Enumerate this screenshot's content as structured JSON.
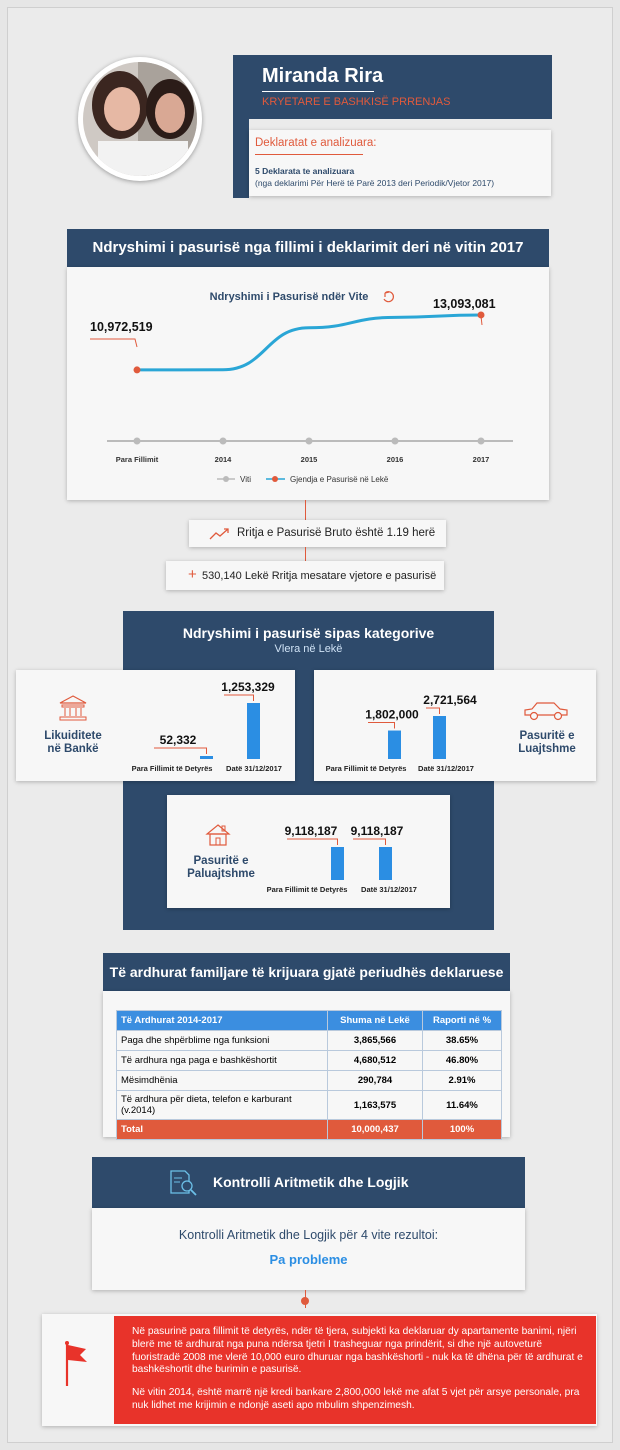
{
  "profile": {
    "name": "Miranda Rira",
    "role": "KRYETARE E BASHKISË PRRENJAS",
    "declarations_heading": "Deklaratat e analizuara:",
    "declarations_count": "5 Deklarata te analizuara",
    "declarations_range": "(nga deklarimi Për Herë të Parë 2013 deri  Periodik/Vjetor 2017)"
  },
  "wealth_change": {
    "title": "Ndryshimi i pasurisë nga fillimi i deklarimit deri në vitin 2017",
    "chart_title": "Ndryshimi i Pasurisë ndër Vite",
    "start_label": "10,972,519",
    "end_label": "13,093,081",
    "legend_year": "Viti",
    "legend_series": "Gjendja e Pasurisë në Lekë"
  },
  "chart_data": [
    {
      "type": "line",
      "title": "Ndryshimi i Pasurisë ndër Vite",
      "categories": [
        "Para Fillimit",
        "2014",
        "2015",
        "2016",
        "2017"
      ],
      "series": [
        {
          "name": "Gjendja e Pasurisë në Lekë",
          "values": [
            10972519,
            10980000,
            12600000,
            13000000,
            13093081
          ]
        }
      ]
    },
    {
      "type": "bar",
      "title": "Likuiditete në Bankë",
      "categories": [
        "Para Fillimit të Detyrës",
        "Datë 31/12/2017"
      ],
      "values": [
        52332,
        1253329
      ]
    },
    {
      "type": "bar",
      "title": "Pasuritë e Luajtshme",
      "categories": [
        "Para Fillimit të Detyrës",
        "Datë 31/12/2017"
      ],
      "values": [
        1802000,
        2721564
      ]
    },
    {
      "type": "bar",
      "title": "Pasuritë e Paluajtshme",
      "categories": [
        "Para Fillimit të Detyrës",
        "Datë 31/12/2017"
      ],
      "values": [
        9118187,
        9118187
      ]
    }
  ],
  "summary": {
    "growth": "Rritja e Pasurisë Bruto është 1.19 herë",
    "avg_value": "530,140",
    "avg_text": "Lekë Rritja mesatare vjetore e pasurisë"
  },
  "categories": {
    "title": "Ndryshimi i pasurisë sipas kategorive",
    "subtitle": "Vlera në Lekë",
    "bank": {
      "label1": "Likuiditete",
      "label2": "në Bankë",
      "v1": "52,332",
      "v2": "1,253,329"
    },
    "movable": {
      "label1": "Pasuritë e",
      "label2": "Luajtshme",
      "v1": "1,802,000",
      "v2": "2,721,564"
    },
    "immovable": {
      "label1": "Pasuritë e",
      "label2": "Paluajtshme",
      "v1": "9,118,187",
      "v2": "9,118,187"
    },
    "x1": "Para Fillimit të Detyrës",
    "x2": "Datë 31/12/2017"
  },
  "income": {
    "title": "Të ardhurat familjare të krijuara gjatë periudhës deklaruese",
    "headers": [
      "Të Ardhurat 2014-2017",
      "Shuma në Lekë",
      "Raporti në %"
    ],
    "rows": [
      [
        "Paga dhe shpërblime nga funksioni",
        "3,865,566",
        "38.65%"
      ],
      [
        "Të ardhura nga paga e bashkëshortit",
        "4,680,512",
        "46.80%"
      ],
      [
        "Mësimdhënia",
        "290,784",
        "2.91%"
      ],
      [
        "Të ardhura për dieta, telefon e karburant (v.2014)",
        "1,163,575",
        "11.64%"
      ]
    ],
    "total": [
      "Total",
      "10,000,437",
      "100%"
    ]
  },
  "control": {
    "title": "Kontrolli Aritmetik dhe Logjik",
    "text": "Kontrolli Aritmetik dhe Logjik për 4 vite rezultoi:",
    "result": "Pa probleme"
  },
  "note": {
    "p1": "Në pasurinë para fillimit të detyrës, ndër të tjera, subjekti ka deklaruar dy apartamente banimi, njëri blerë me të ardhurat nga puna ndërsa tjetri I trasheguar nga prindërit, si dhe  një autoveturë fuoristradë 2008 me vlerë 10,000 euro dhuruar nga bashkëshorti - nuk ka të dhëna për të ardhurat e bashkëshortit dhe burimin e pasurisë.",
    "p2": "Në vitin 2014, është marrë një kredi bankare 2,800,000 lekë me afat 5 vjet për arsye personale, pra nuk lidhet me krijimin e ndonjë aseti apo mbulim shpenzimesh."
  },
  "colors": {
    "navy": "#2e4a6b",
    "orange": "#e05a3c",
    "blue": "#2b8ee3",
    "red": "#e8332a"
  }
}
